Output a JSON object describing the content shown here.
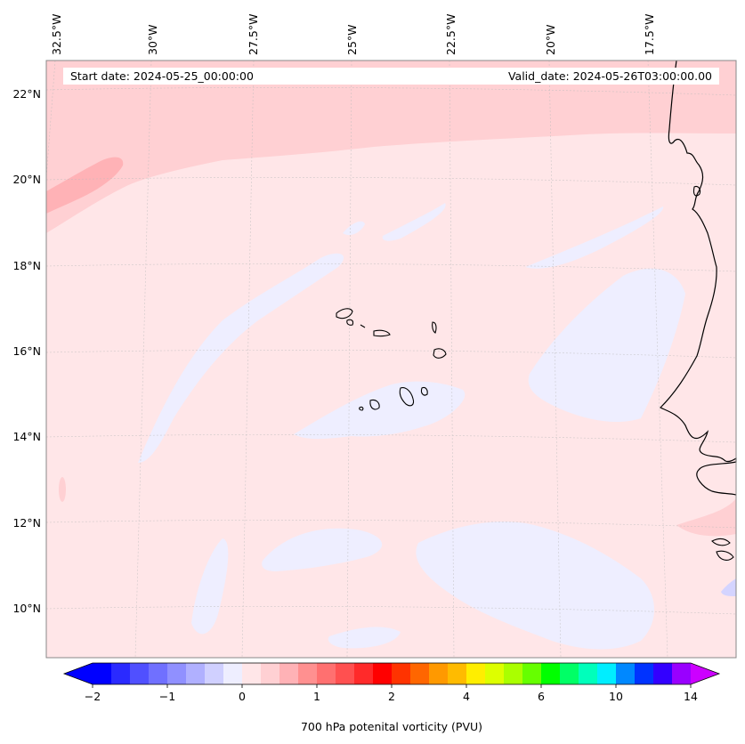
{
  "map": {
    "header": {
      "start_date": "Start date: 2024-05-25_00:00:00",
      "valid_date": "Valid_date: 2024-05-26T03:00:00.00"
    },
    "lon_labels": [
      "32.5°W",
      "30°W",
      "27.5°W",
      "25°W",
      "22.5°W",
      "20°W",
      "17.5°W"
    ],
    "lat_labels": [
      "22°N",
      "20°N",
      "18°N",
      "16°N",
      "14°N",
      "12°N",
      "10°N"
    ],
    "background_color": "#ffe6e8",
    "colors": {
      "light_blue": "#eeeeff",
      "light_pink": "#ffd0d3",
      "medium_pink": "#ffb2b6",
      "coast": "#000000"
    }
  },
  "colorbar": {
    "label": "700 hPa potenital vorticity (PVU)",
    "tick_labels": [
      "−2",
      "−1",
      "0",
      "1",
      "2",
      "4",
      "6",
      "10",
      "14"
    ],
    "colors": [
      "#0000ff",
      "#2a2aff",
      "#5050ff",
      "#7070ff",
      "#9090ff",
      "#b0b0ff",
      "#d0d0ff",
      "#eeeeff",
      "#ffe6e8",
      "#ffd0d3",
      "#ffb2b6",
      "#ff9090",
      "#ff7070",
      "#ff5050",
      "#ff2a2a",
      "#ff0000",
      "#ff3300",
      "#ff6600",
      "#ff9900",
      "#ffbb00",
      "#ffee00",
      "#ddff00",
      "#aaff00",
      "#66ff00",
      "#00ff00",
      "#00ff66",
      "#00ffbb",
      "#00eeff",
      "#0088ff",
      "#0033ff",
      "#3300ff",
      "#9900ff"
    ],
    "extend_low": "#0000ff",
    "extend_high": "#cc00ff"
  }
}
